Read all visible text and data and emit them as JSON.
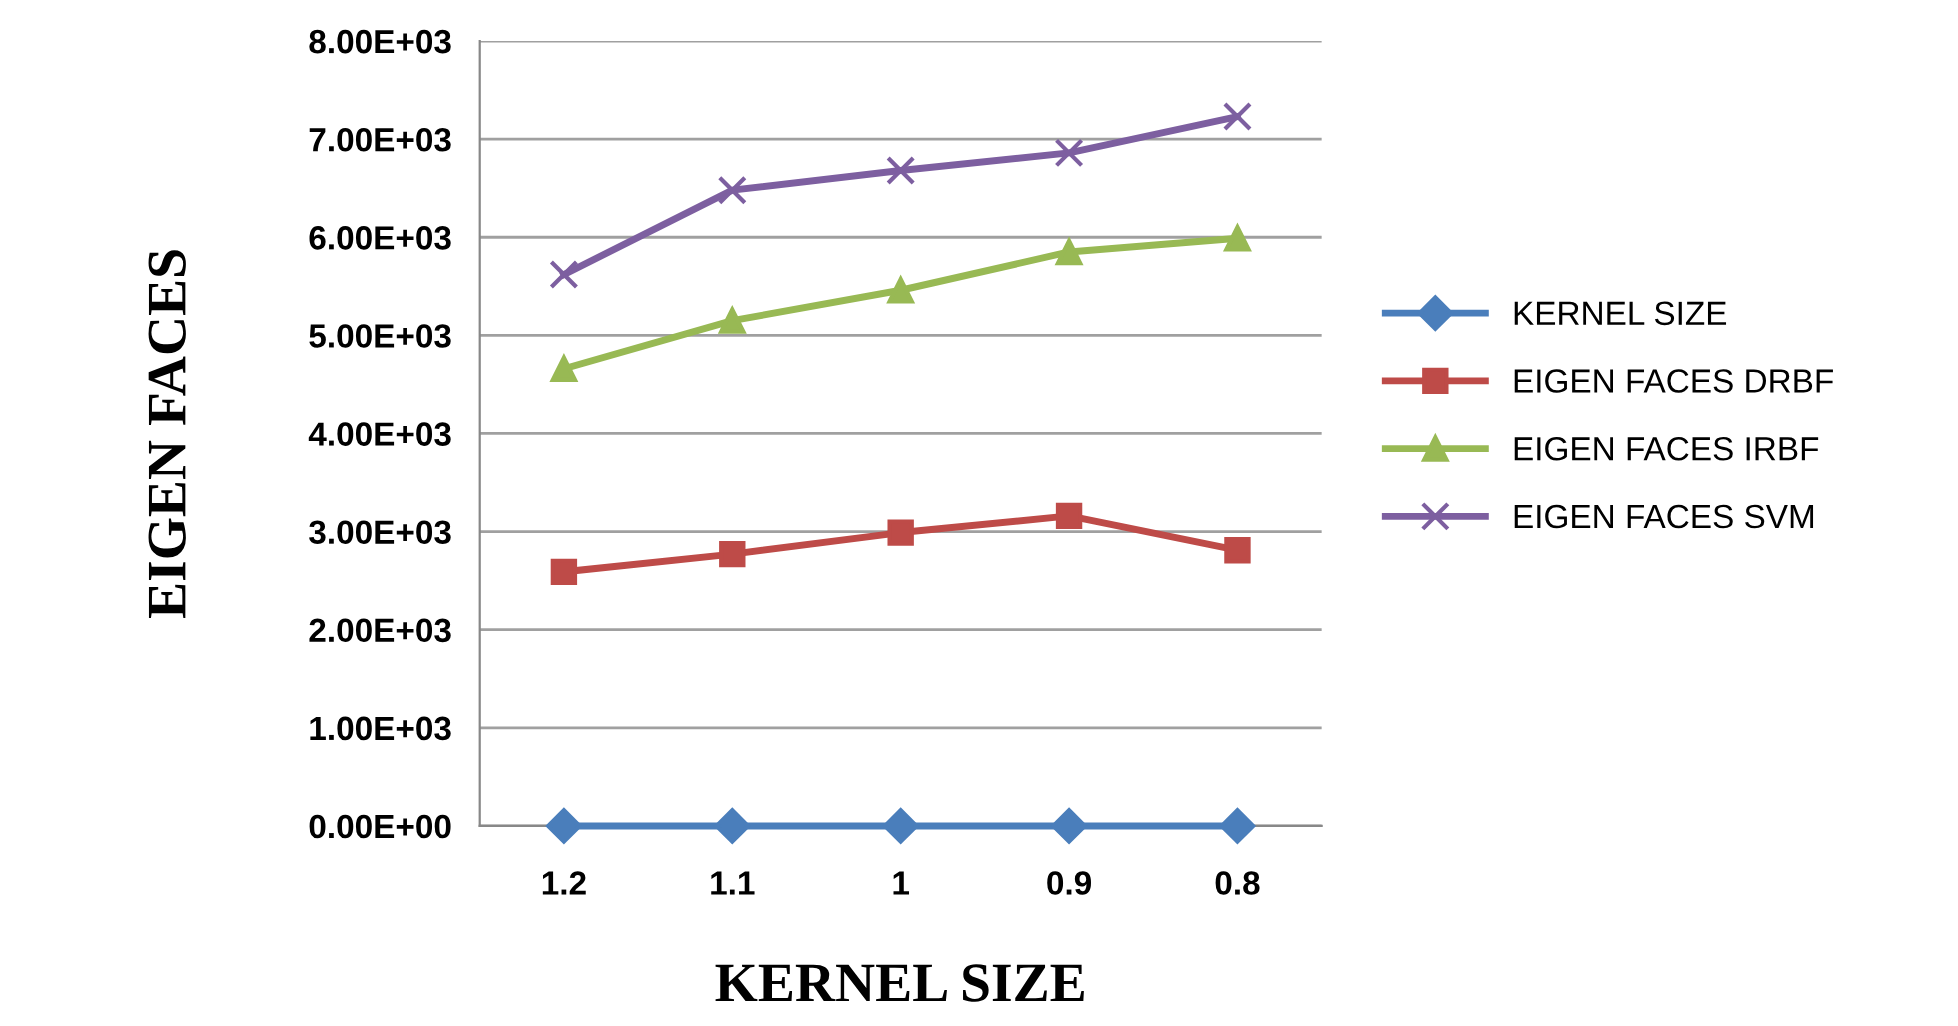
{
  "chart_data": {
    "type": "line",
    "xlabel": "KERNEL SIZE",
    "ylabel": "EIGEN FACES",
    "categories": [
      "1.2",
      "1.1",
      "1",
      "0.9",
      "0.8"
    ],
    "series": [
      {
        "name": "KERNEL SIZE",
        "color": "#4a7ebb",
        "marker": "diamond",
        "values": [
          0,
          0,
          0,
          0,
          0
        ]
      },
      {
        "name": "EIGEN FACES DRBF",
        "color": "#be4b48",
        "marker": "square",
        "values": [
          2590,
          2770,
          2990,
          3160,
          2810
        ]
      },
      {
        "name": "EIGEN FACES IRBF",
        "color": "#98b954",
        "marker": "triangle",
        "values": [
          4660,
          5150,
          5460,
          5850,
          5990
        ]
      },
      {
        "name": "EIGEN FACES SVM",
        "color": "#7d5fa0",
        "marker": "cross",
        "values": [
          5620,
          6480,
          6680,
          6860,
          7230
        ]
      }
    ],
    "ylim": [
      0,
      8000
    ],
    "yticks": [
      {
        "value": 0,
        "label": "0.00E+00"
      },
      {
        "value": 1000,
        "label": "1.00E+03"
      },
      {
        "value": 2000,
        "label": "2.00E+03"
      },
      {
        "value": 3000,
        "label": "3.00E+03"
      },
      {
        "value": 4000,
        "label": "4.00E+03"
      },
      {
        "value": 5000,
        "label": "5.00E+03"
      },
      {
        "value": 6000,
        "label": "6.00E+03"
      },
      {
        "value": 7000,
        "label": "7.00E+03"
      },
      {
        "value": 8000,
        "label": "8.00E+03"
      }
    ],
    "grid": "y",
    "legend": "right",
    "line_style": "solid"
  }
}
